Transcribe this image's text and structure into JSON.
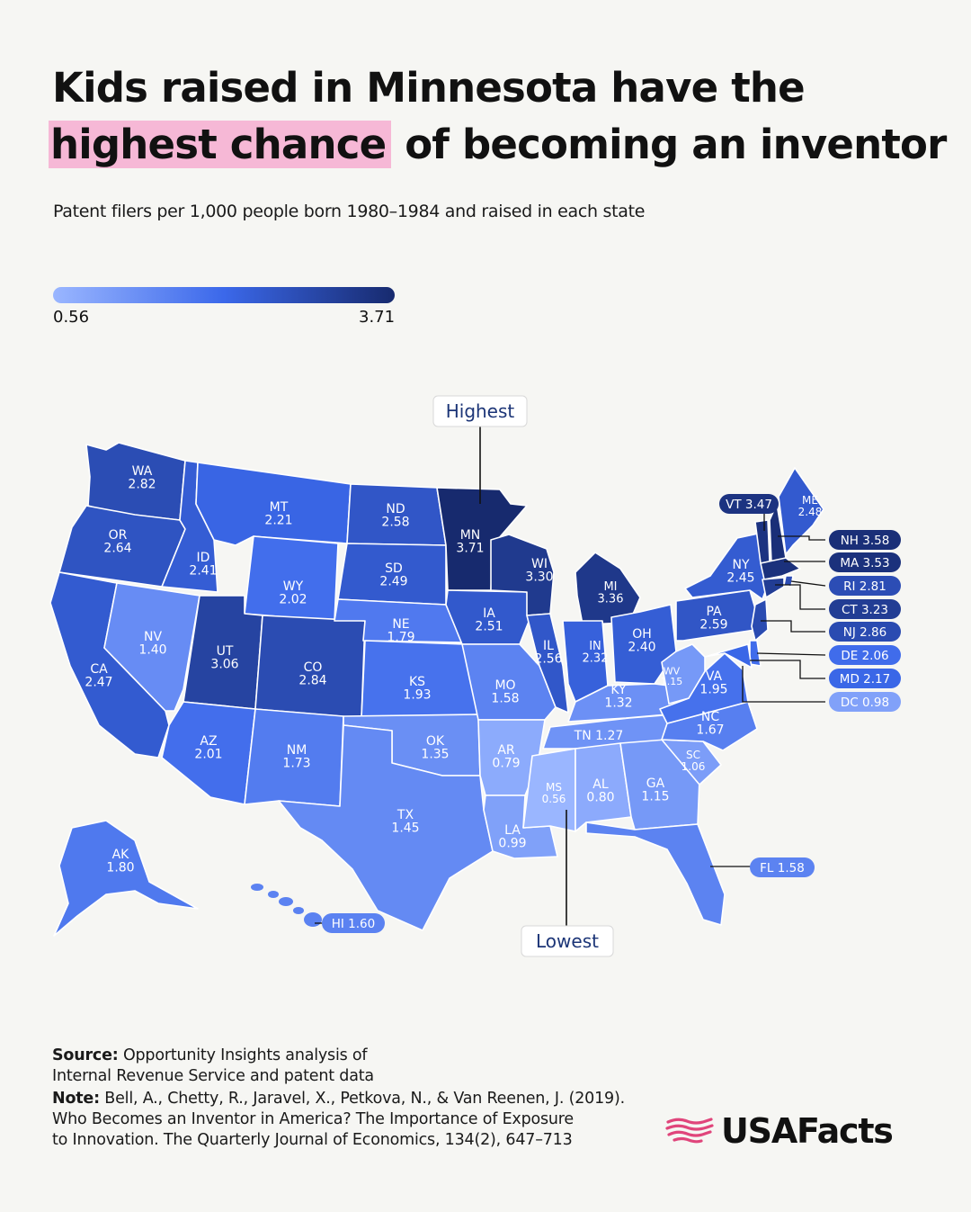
{
  "title": {
    "line1": "Kids raised in Minnesota have the",
    "highlight": "highest chance",
    "line2_rest": "of becoming an inventor"
  },
  "subtitle": "Patent filers per 1,000 people born 1980–1984 and raised in each state",
  "legend": {
    "min": "0.56",
    "max": "3.71",
    "min_value": 0.56,
    "max_value": 3.71
  },
  "colors": {
    "low": "#9ab6ff",
    "mid": "#3b68ea",
    "high": "#172a6e",
    "highlight": "#f6b8d6",
    "logo": "#e0457b"
  },
  "callouts": {
    "highest": "Highest",
    "lowest": "Lowest"
  },
  "chart_data": {
    "type": "choropleth",
    "title": "Kids raised in Minnesota have the highest chance of becoming an inventor",
    "states": [
      {
        "code": "WA",
        "value": 2.82
      },
      {
        "code": "OR",
        "value": 2.64
      },
      {
        "code": "CA",
        "value": 2.47
      },
      {
        "code": "NV",
        "value": 1.4
      },
      {
        "code": "ID",
        "value": 2.41
      },
      {
        "code": "MT",
        "value": 2.21
      },
      {
        "code": "WY",
        "value": 2.02
      },
      {
        "code": "UT",
        "value": 3.06
      },
      {
        "code": "CO",
        "value": 2.84
      },
      {
        "code": "AZ",
        "value": 2.01
      },
      {
        "code": "NM",
        "value": 1.73
      },
      {
        "code": "ND",
        "value": 2.58
      },
      {
        "code": "SD",
        "value": 2.49
      },
      {
        "code": "NE",
        "value": 1.79
      },
      {
        "code": "KS",
        "value": 1.93
      },
      {
        "code": "OK",
        "value": 1.35
      },
      {
        "code": "TX",
        "value": 1.45
      },
      {
        "code": "MN",
        "value": 3.71
      },
      {
        "code": "IA",
        "value": 2.51
      },
      {
        "code": "MO",
        "value": 1.58
      },
      {
        "code": "AR",
        "value": 0.79
      },
      {
        "code": "LA",
        "value": 0.99
      },
      {
        "code": "WI",
        "value": 3.3
      },
      {
        "code": "IL",
        "value": 2.56
      },
      {
        "code": "MI",
        "value": 3.36
      },
      {
        "code": "IN",
        "value": 2.32
      },
      {
        "code": "OH",
        "value": 2.4
      },
      {
        "code": "KY",
        "value": 1.32
      },
      {
        "code": "TN",
        "value": 1.27
      },
      {
        "code": "MS",
        "value": 0.56
      },
      {
        "code": "AL",
        "value": 0.8
      },
      {
        "code": "GA",
        "value": 1.15
      },
      {
        "code": "FL",
        "value": 1.58
      },
      {
        "code": "SC",
        "value": 1.06
      },
      {
        "code": "NC",
        "value": 1.67
      },
      {
        "code": "VA",
        "value": 1.95
      },
      {
        "code": "WV",
        "value": 1.15
      },
      {
        "code": "PA",
        "value": 2.59
      },
      {
        "code": "NY",
        "value": 2.45
      },
      {
        "code": "VT",
        "value": 3.47
      },
      {
        "code": "ME",
        "value": 2.48
      },
      {
        "code": "NH",
        "value": 3.58
      },
      {
        "code": "MA",
        "value": 3.53
      },
      {
        "code": "RI",
        "value": 2.81
      },
      {
        "code": "CT",
        "value": 3.23
      },
      {
        "code": "NJ",
        "value": 2.86
      },
      {
        "code": "DE",
        "value": 2.06
      },
      {
        "code": "MD",
        "value": 2.17
      },
      {
        "code": "DC",
        "value": 0.98
      },
      {
        "code": "AK",
        "value": 1.8
      },
      {
        "code": "HI",
        "value": 1.6
      }
    ]
  },
  "footer": {
    "source_label": "Source:",
    "source_line1": "Opportunity Insights analysis of",
    "source_line2": "Internal Revenue Service and patent data",
    "note_label": "Note:",
    "note_line1": "Bell, A., Chetty, R., Jaravel, X., Petkova, N., & Van Reenen, J. (2019).",
    "note_line2": "Who Becomes an Inventor in America? The Importance of Exposure",
    "note_line3": "to Innovation. The Quarterly Journal of Economics, 134(2), 647–713"
  },
  "logo": {
    "text": "USAFacts",
    "icon": "usa-flag-map-icon"
  }
}
